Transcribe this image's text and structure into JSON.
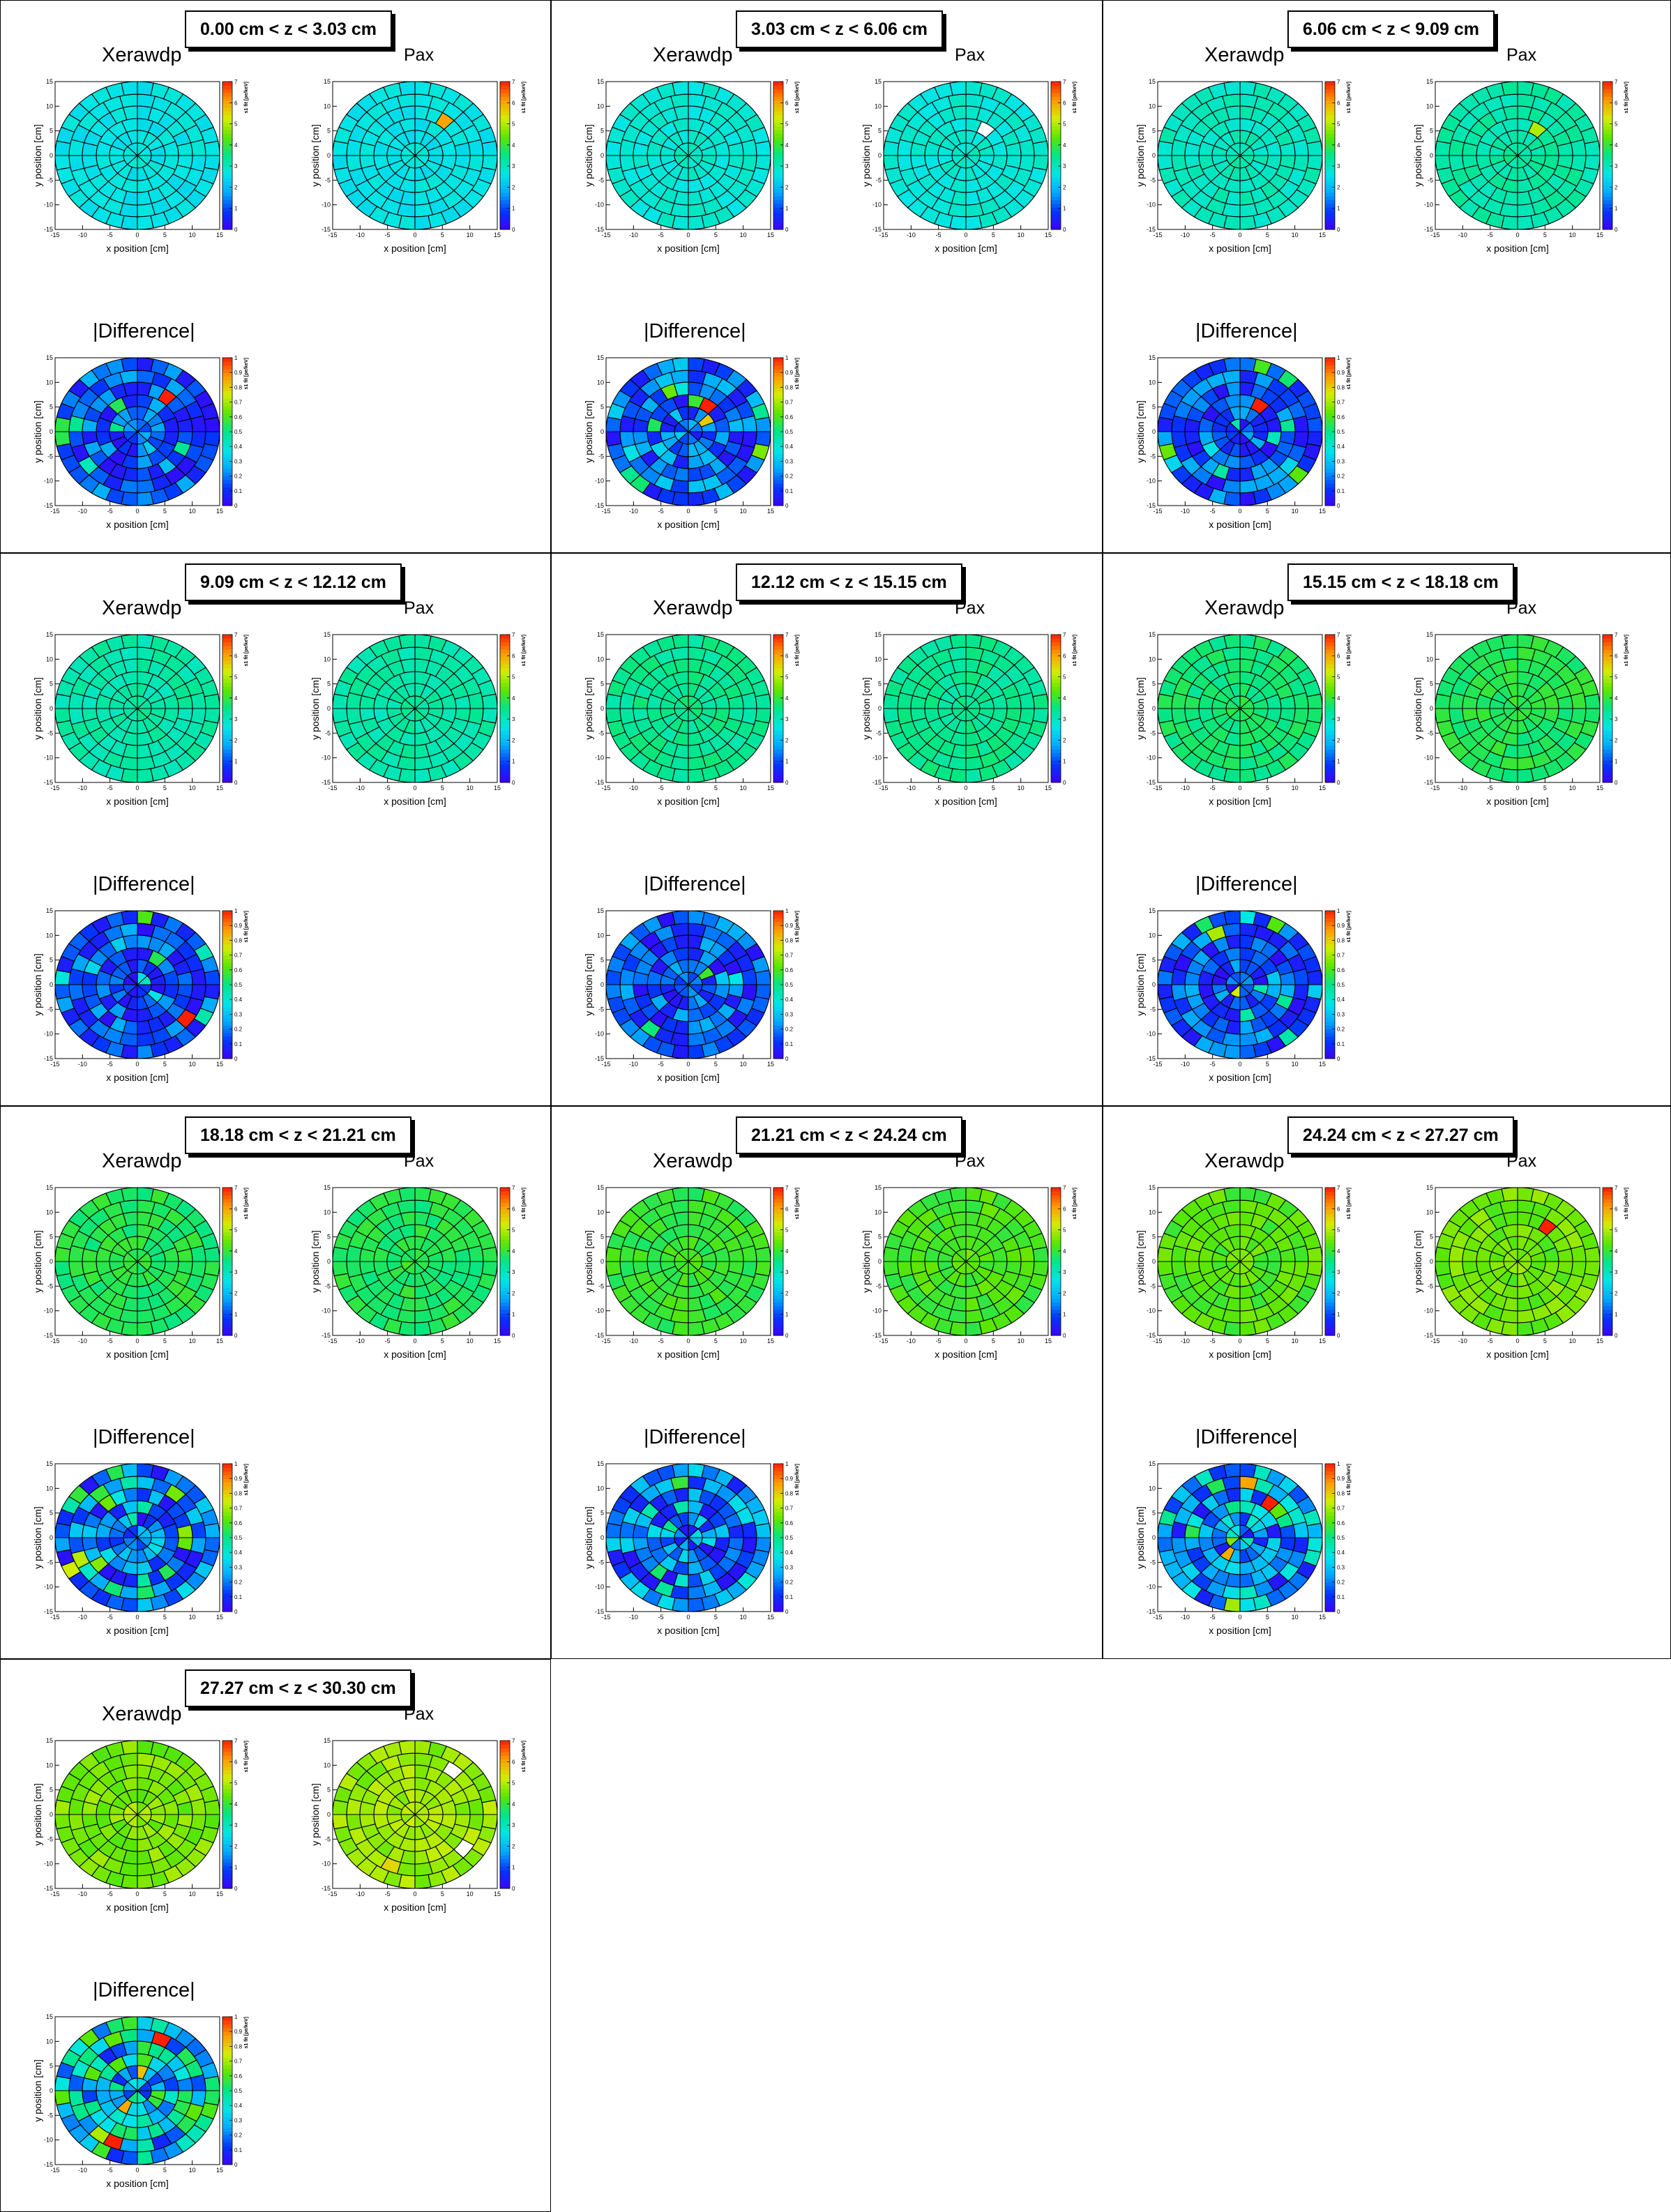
{
  "plot_titles": {
    "left": "Xerawdp",
    "right": "Pax",
    "bottom": "|Difference|"
  },
  "axes": {
    "xlabel": "x position [cm]",
    "ylabel": "y position [cm]",
    "zlabel": "s1 fit [pe/keV]",
    "xticks": [
      "-15",
      "-10",
      "-5",
      "0",
      "5",
      "10",
      "15"
    ],
    "yticks": [
      "-15",
      "-10",
      "-5",
      "0",
      "5",
      "10",
      "15"
    ],
    "cbar_ticks_main": [
      "0",
      "1",
      "2",
      "3",
      "4",
      "5",
      "6",
      "7"
    ],
    "cbar_ticks_diff": [
      "0",
      "0.1",
      "0.2",
      "0.3",
      "0.4",
      "0.5",
      "0.6",
      "0.7",
      "0.8",
      "0.9",
      "1"
    ]
  },
  "colors": {
    "background": "#ffffff",
    "frame": "#000000",
    "palette": [
      "#3d00ff",
      "#0038ff",
      "#00aaff",
      "#00e6e6",
      "#00e68a",
      "#5be600",
      "#d4ee00",
      "#ff9a00",
      "#ff2000"
    ]
  },
  "chart_data": [
    {
      "type": "heatmap",
      "grid": "polar",
      "title": "0.00 cm < z < 3.03 cm",
      "panels": [
        {
          "name": "Xerawdp",
          "zlim": [
            0,
            7
          ],
          "typical_value": 2.6,
          "highlights": []
        },
        {
          "name": "Pax",
          "zlim": [
            0,
            7
          ],
          "typical_value": 2.6,
          "highlights": [
            {
              "ring": 3,
              "sector": 2,
              "value": 6.0
            }
          ]
        },
        {
          "name": "|Difference|",
          "zlim": [
            0,
            1
          ],
          "typical_value": 0.15,
          "highlights": [
            {
              "ring": 3,
              "sector": 2,
              "value": 1.0
            }
          ]
        }
      ]
    },
    {
      "type": "heatmap",
      "grid": "polar",
      "title": "3.03 cm < z < 6.06 cm",
      "panels": [
        {
          "name": "Xerawdp",
          "zlim": [
            0,
            7
          ],
          "typical_value": 2.8,
          "highlights": []
        },
        {
          "name": "Pax",
          "zlim": [
            0,
            7
          ],
          "typical_value": 2.8,
          "highlights": [
            {
              "ring": 2,
              "sector": 2,
              "value": "empty"
            }
          ]
        },
        {
          "name": "|Difference|",
          "zlim": [
            0,
            1
          ],
          "typical_value": 0.18,
          "highlights": [
            {
              "ring": 2,
              "sector": 2,
              "value": 1.0
            },
            {
              "ring": 1,
              "sector": 1,
              "value": 0.8
            }
          ]
        }
      ]
    },
    {
      "type": "heatmap",
      "grid": "polar",
      "title": "6.06 cm < z < 9.09 cm",
      "panels": [
        {
          "name": "Xerawdp",
          "zlim": [
            0,
            7
          ],
          "typical_value": 3.0,
          "highlights": []
        },
        {
          "name": "Pax",
          "zlim": [
            0,
            7
          ],
          "typical_value": 3.2,
          "highlights": [
            {
              "ring": 2,
              "sector": 2,
              "value": 5.0
            }
          ]
        },
        {
          "name": "|Difference|",
          "zlim": [
            0,
            1
          ],
          "typical_value": 0.15,
          "highlights": [
            {
              "ring": 2,
              "sector": 2,
              "value": 1.0
            }
          ]
        }
      ]
    },
    {
      "type": "heatmap",
      "grid": "polar",
      "title": "9.09 cm < z < 12.12 cm",
      "panels": [
        {
          "name": "Xerawdp",
          "zlim": [
            0,
            7
          ],
          "typical_value": 3.2,
          "highlights": []
        },
        {
          "name": "Pax",
          "zlim": [
            0,
            7
          ],
          "typical_value": 3.2,
          "highlights": []
        },
        {
          "name": "|Difference|",
          "zlim": [
            0,
            1
          ],
          "typical_value": 0.15,
          "highlights": [
            {
              "ring": 4,
              "sector": 14,
              "value": 1.0
            },
            {
              "ring": 2,
              "sector": 2,
              "value": 0.55
            }
          ]
        }
      ]
    },
    {
      "type": "heatmap",
      "grid": "polar",
      "title": "12.12 cm < z < 15.15 cm",
      "panels": [
        {
          "name": "Xerawdp",
          "zlim": [
            0,
            7
          ],
          "typical_value": 3.4,
          "highlights": []
        },
        {
          "name": "Pax",
          "zlim": [
            0,
            7
          ],
          "typical_value": 3.4,
          "highlights": []
        },
        {
          "name": "|Difference|",
          "zlim": [
            0,
            1
          ],
          "typical_value": 0.15,
          "highlights": []
        }
      ]
    },
    {
      "type": "heatmap",
      "grid": "polar",
      "title": "15.15 cm < z < 18.18 cm",
      "panels": [
        {
          "name": "Xerawdp",
          "zlim": [
            0,
            7
          ],
          "typical_value": 3.6,
          "highlights": []
        },
        {
          "name": "Pax",
          "zlim": [
            0,
            7
          ],
          "typical_value": 3.8,
          "highlights": []
        },
        {
          "name": "|Difference|",
          "zlim": [
            0,
            1
          ],
          "typical_value": 0.15,
          "highlights": [
            {
              "ring": 0,
              "sector": 10,
              "value": 0.75
            }
          ]
        }
      ]
    },
    {
      "type": "heatmap",
      "grid": "polar",
      "title": "18.18 cm < z < 21.21 cm",
      "panels": [
        {
          "name": "Xerawdp",
          "zlim": [
            0,
            7
          ],
          "typical_value": 3.8,
          "highlights": []
        },
        {
          "name": "Pax",
          "zlim": [
            0,
            7
          ],
          "typical_value": 3.8,
          "highlights": []
        },
        {
          "name": "|Difference|",
          "zlim": [
            0,
            1
          ],
          "typical_value": 0.18,
          "highlights": []
        }
      ]
    },
    {
      "type": "heatmap",
      "grid": "polar",
      "title": "21.21 cm < z < 24.24 cm",
      "panels": [
        {
          "name": "Xerawdp",
          "zlim": [
            0,
            7
          ],
          "typical_value": 4.0,
          "highlights": []
        },
        {
          "name": "Pax",
          "zlim": [
            0,
            7
          ],
          "typical_value": 4.2,
          "highlights": []
        },
        {
          "name": "|Difference|",
          "zlim": [
            0,
            1
          ],
          "typical_value": 0.2,
          "highlights": []
        }
      ]
    },
    {
      "type": "heatmap",
      "grid": "polar",
      "title": "24.24 cm < z < 27.27 cm",
      "panels": [
        {
          "name": "Xerawdp",
          "zlim": [
            0,
            7
          ],
          "typical_value": 4.3,
          "highlights": []
        },
        {
          "name": "Pax",
          "zlim": [
            0,
            7
          ],
          "typical_value": 4.5,
          "highlights": [
            {
              "ring": 3,
              "sector": 2,
              "value": 7.0
            }
          ]
        },
        {
          "name": "|Difference|",
          "zlim": [
            0,
            1
          ],
          "typical_value": 0.25,
          "highlights": [
            {
              "ring": 3,
              "sector": 2,
              "value": 1.0
            },
            {
              "ring": 1,
              "sector": 10,
              "value": 0.85
            }
          ]
        }
      ]
    },
    {
      "type": "heatmap",
      "grid": "polar",
      "title": "27.27 cm < z < 30.30 cm",
      "panels": [
        {
          "name": "Xerawdp",
          "zlim": [
            0,
            7
          ],
          "typical_value": 4.6,
          "highlights": []
        },
        {
          "name": "Pax",
          "zlim": [
            0,
            7
          ],
          "typical_value": 4.8,
          "highlights": [
            {
              "ring": 4,
              "sector": 2,
              "value": "empty"
            },
            {
              "ring": 4,
              "sector": 14,
              "value": "empty"
            },
            {
              "ring": 4,
              "sector": 11,
              "value": 5.5
            }
          ]
        },
        {
          "name": "|Difference|",
          "zlim": [
            0,
            1
          ],
          "typical_value": 0.35,
          "highlights": [
            {
              "ring": 4,
              "sector": 11,
              "value": 1.0
            },
            {
              "ring": 4,
              "sector": 3,
              "value": 1.0
            },
            {
              "ring": 1,
              "sector": 10,
              "value": 0.85
            }
          ]
        }
      ]
    }
  ]
}
